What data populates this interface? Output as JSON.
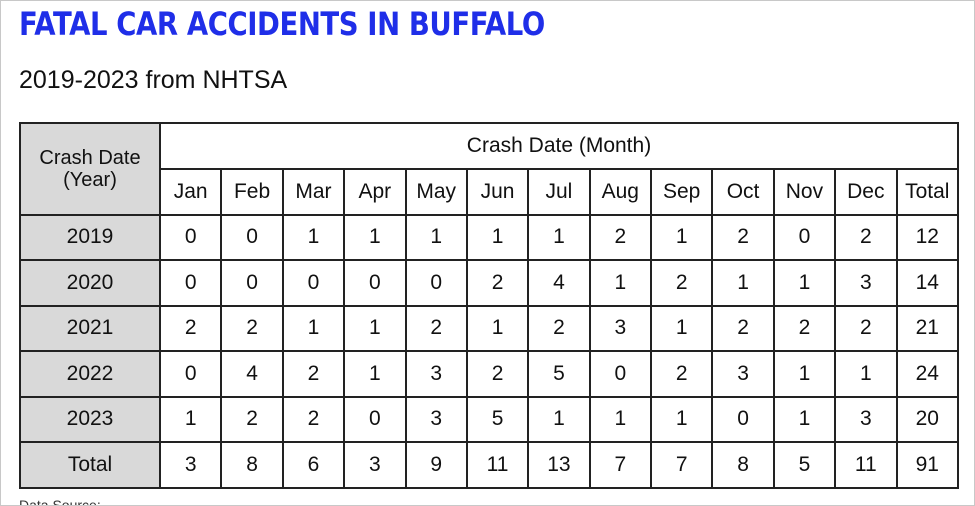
{
  "title": "FATAL CAR ACCIDENTS IN BUFFALO",
  "subtitle": "2019-2023 from NHTSA",
  "table": {
    "corner_header": "Crash Date (Year)",
    "group_header": "Crash Date (Month)",
    "columns": [
      "Jan",
      "Feb",
      "Mar",
      "Apr",
      "May",
      "Jun",
      "Jul",
      "Aug",
      "Sep",
      "Oct",
      "Nov",
      "Dec",
      "Total"
    ],
    "rows": [
      {
        "label": "2019",
        "values": [
          "0",
          "0",
          "1",
          "1",
          "1",
          "1",
          "1",
          "2",
          "1",
          "2",
          "0",
          "2",
          "12"
        ]
      },
      {
        "label": "2020",
        "values": [
          "0",
          "0",
          "0",
          "0",
          "0",
          "2",
          "4",
          "1",
          "2",
          "1",
          "1",
          "3",
          "14"
        ]
      },
      {
        "label": "2021",
        "values": [
          "2",
          "2",
          "1",
          "1",
          "2",
          "1",
          "2",
          "3",
          "1",
          "2",
          "2",
          "2",
          "21"
        ]
      },
      {
        "label": "2022",
        "values": [
          "0",
          "4",
          "2",
          "1",
          "3",
          "2",
          "5",
          "0",
          "2",
          "3",
          "1",
          "1",
          "24"
        ]
      },
      {
        "label": "2023",
        "values": [
          "1",
          "2",
          "2",
          "0",
          "3",
          "5",
          "1",
          "1",
          "1",
          "0",
          "1",
          "3",
          "20"
        ]
      },
      {
        "label": "Total",
        "values": [
          "3",
          "8",
          "6",
          "3",
          "9",
          "11",
          "13",
          "7",
          "7",
          "8",
          "5",
          "11",
          "91"
        ]
      }
    ]
  },
  "footer_note": "Data Source:",
  "colors": {
    "title": "#1f2ee8",
    "header_fill": "#d9d9d9",
    "grid": "#222222"
  },
  "chart_data": {
    "type": "table",
    "title": "FATAL CAR ACCIDENTS IN BUFFALO",
    "subtitle": "2019-2023 from NHTSA",
    "row_header": "Crash Date (Year)",
    "column_header": "Crash Date (Month)",
    "columns": [
      "Jan",
      "Feb",
      "Mar",
      "Apr",
      "May",
      "Jun",
      "Jul",
      "Aug",
      "Sep",
      "Oct",
      "Nov",
      "Dec",
      "Total"
    ],
    "rows": [
      "2019",
      "2020",
      "2021",
      "2022",
      "2023",
      "Total"
    ],
    "values": [
      [
        0,
        0,
        1,
        1,
        1,
        1,
        1,
        2,
        1,
        2,
        0,
        2,
        12
      ],
      [
        0,
        0,
        0,
        0,
        0,
        2,
        4,
        1,
        2,
        1,
        1,
        3,
        14
      ],
      [
        2,
        2,
        1,
        1,
        2,
        1,
        2,
        3,
        1,
        2,
        2,
        2,
        21
      ],
      [
        0,
        4,
        2,
        1,
        3,
        2,
        5,
        0,
        2,
        3,
        1,
        1,
        24
      ],
      [
        1,
        2,
        2,
        0,
        3,
        5,
        1,
        1,
        1,
        0,
        1,
        3,
        20
      ],
      [
        3,
        8,
        6,
        3,
        9,
        11,
        13,
        7,
        7,
        8,
        5,
        11,
        91
      ]
    ]
  }
}
